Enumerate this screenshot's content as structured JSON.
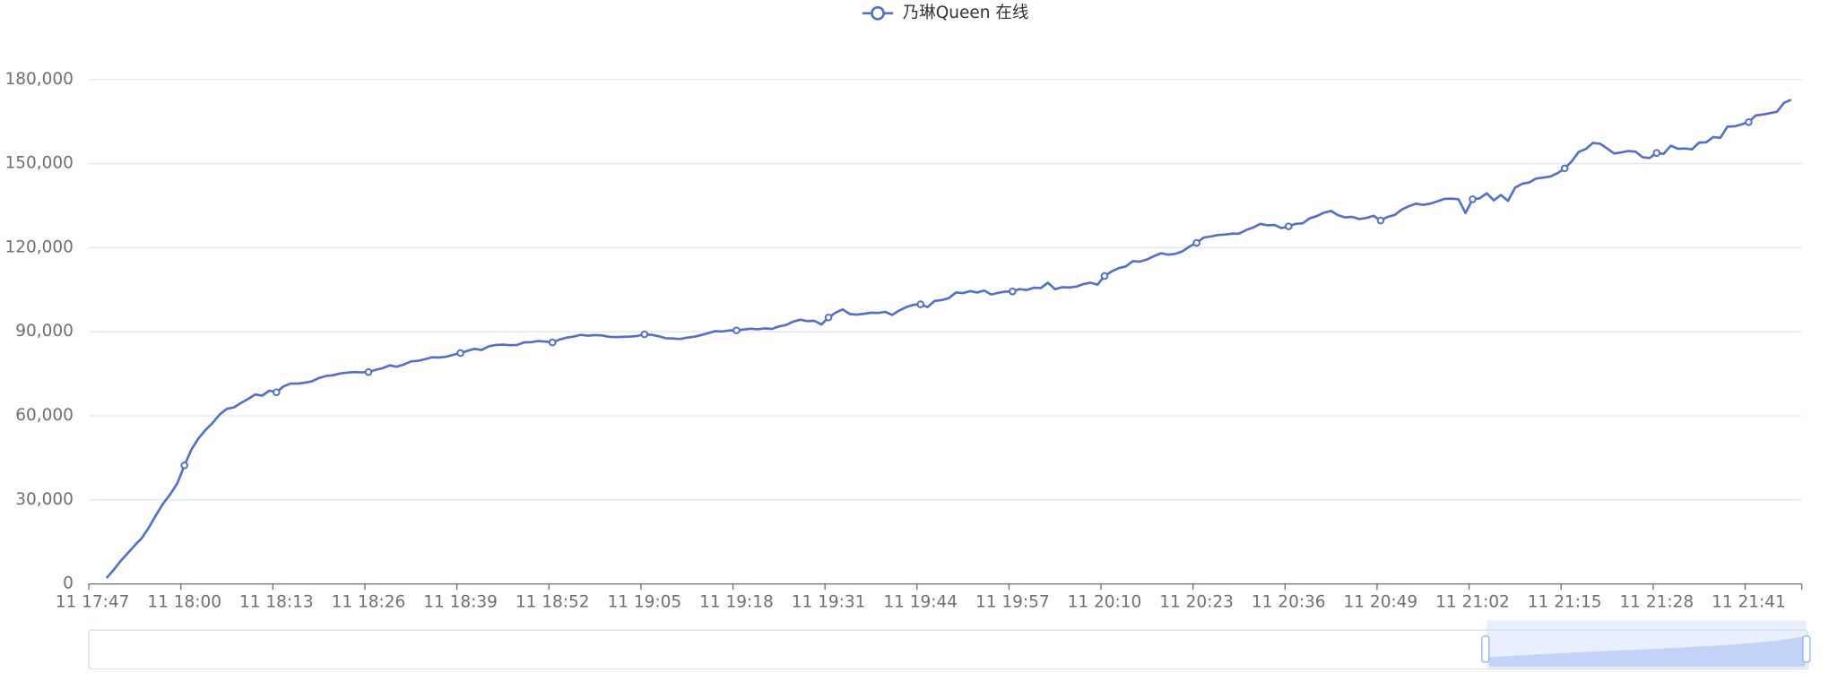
{
  "chart_data": {
    "type": "line",
    "categories": [
      "11 17:47",
      null,
      null,
      null,
      null,
      null,
      null,
      null,
      null,
      null,
      null,
      null,
      null,
      "11 18:00",
      null,
      null,
      null,
      null,
      null,
      null,
      null,
      null,
      null,
      null,
      null,
      null,
      "11 18:13",
      null,
      null,
      null,
      null,
      null,
      null,
      null,
      null,
      null,
      null,
      null,
      null,
      "11 18:26",
      null,
      null,
      null,
      null,
      null,
      null,
      null,
      null,
      null,
      null,
      null,
      null,
      "11 18:39",
      null,
      null,
      null,
      null,
      null,
      null,
      null,
      null,
      null,
      null,
      null,
      null,
      "11 18:52",
      null,
      null,
      null,
      null,
      null,
      null,
      null,
      null,
      null,
      null,
      null,
      null,
      "11 19:05",
      null,
      null,
      null,
      null,
      null,
      null,
      null,
      null,
      null,
      null,
      null,
      null,
      "11 19:18",
      null,
      null,
      null,
      null,
      null,
      null,
      null,
      null,
      null,
      null,
      null,
      null,
      "11 19:31",
      null,
      null,
      null,
      null,
      null,
      null,
      null,
      null,
      null,
      null,
      null,
      null,
      "11 19:44",
      null,
      null,
      null,
      null,
      null,
      null,
      null,
      null,
      null,
      null,
      null,
      null,
      "11 19:57",
      null,
      null,
      null,
      null,
      null,
      null,
      null,
      null,
      null,
      null,
      null,
      null,
      "11 20:10",
      null,
      null,
      null,
      null,
      null,
      null,
      null,
      null,
      null,
      null,
      null,
      null,
      "11 20:23",
      null,
      null,
      null,
      null,
      null,
      null,
      null,
      null,
      null,
      null,
      null,
      null,
      "11 20:36",
      null,
      null,
      null,
      null,
      null,
      null,
      null,
      null,
      null,
      null,
      null,
      null,
      "11 20:49",
      null,
      null,
      null,
      null,
      null,
      null,
      null,
      null,
      null,
      null,
      null,
      null,
      "11 21:02",
      null,
      null,
      null,
      null,
      null,
      null,
      null,
      null,
      null,
      null,
      null,
      null,
      "11 21:15",
      null,
      null,
      null,
      null,
      null,
      null,
      null,
      null,
      null,
      null,
      null,
      null,
      "11 21:28",
      null,
      null,
      null,
      null,
      null,
      null,
      null,
      null,
      null,
      null,
      null,
      null,
      "11 21:41",
      null,
      null,
      null,
      null,
      null,
      null,
      null
    ],
    "series": [
      {
        "name": "乃琳Queen 在线",
        "color": "#5470c6",
        "values": [
          null,
          null,
          2100,
          5000,
          8200,
          11000,
          13800,
          16400,
          20200,
          24600,
          28700,
          32000,
          35900,
          42300,
          48000,
          52000,
          55000,
          57500,
          60500,
          62500,
          63000,
          64600,
          66000,
          67600,
          67200,
          69000,
          68400,
          70500,
          71500,
          71500,
          71800,
          72300,
          73500,
          74200,
          74500,
          75100,
          75400,
          75600,
          75500,
          75600,
          76400,
          77000,
          78000,
          77500,
          78300,
          79400,
          79600,
          80200,
          80900,
          80800,
          81100,
          81800,
          82400,
          83200,
          83900,
          83500,
          84800,
          85300,
          85400,
          85200,
          85300,
          86200,
          86300,
          86700,
          86500,
          86200,
          87200,
          87900,
          88300,
          88900,
          88600,
          88800,
          88700,
          88200,
          88100,
          88200,
          88300,
          88500,
          89100,
          88900,
          88400,
          87700,
          87600,
          87400,
          87900,
          88200,
          88800,
          89500,
          90200,
          90100,
          90500,
          90500,
          90800,
          91100,
          90900,
          91200,
          91000,
          91900,
          92400,
          93600,
          94300,
          93800,
          93900,
          92600,
          95100,
          96800,
          98000,
          96300,
          96100,
          96400,
          96800,
          96700,
          97100,
          96000,
          97600,
          98800,
          99600,
          99800,
          98800,
          101000,
          101300,
          102000,
          104000,
          103800,
          104500,
          104000,
          104700,
          103300,
          103900,
          104300,
          104400,
          105200,
          104900,
          105700,
          105600,
          107500,
          105200,
          105900,
          105800,
          106100,
          107000,
          107500,
          106800,
          109900,
          111500,
          112700,
          113300,
          115200,
          115000,
          115800,
          117000,
          118000,
          117500,
          117800,
          118700,
          120400,
          121700,
          123600,
          124000,
          124500,
          124700,
          125000,
          125000,
          126300,
          127200,
          128500,
          128000,
          128100,
          127000,
          127600,
          128500,
          128700,
          130500,
          131300,
          132500,
          133100,
          131600,
          130800,
          131000,
          130200,
          130600,
          131400,
          129700,
          131000,
          131700,
          133600,
          134800,
          135700,
          135300,
          135700,
          136500,
          137400,
          137500,
          137300,
          132400,
          137300,
          137600,
          139400,
          136900,
          138800,
          136700,
          141400,
          142800,
          143300,
          144700,
          145000,
          145400,
          146600,
          148300,
          150800,
          154200,
          155200,
          157400,
          157100,
          155400,
          153600,
          154000,
          154500,
          154300,
          152300,
          152000,
          153800,
          153500,
          156400,
          155300,
          155400,
          155100,
          157500,
          157600,
          159500,
          159200,
          163200,
          163300,
          164000,
          164800,
          167200,
          167500,
          168000,
          168500,
          171700,
          172800,
          null
        ]
      }
    ],
    "ylim": [
      0,
      180000
    ],
    "yticks": [
      0,
      {
        "value": 30000,
        "label": "30,000"
      },
      {
        "value": 60000,
        "label": "60,000"
      },
      {
        "value": 90000,
        "label": "90,000"
      },
      {
        "value": 120000,
        "label": "120,000"
      },
      {
        "value": 150000,
        "label": "150,000"
      },
      {
        "value": 180000,
        "label": "180,000"
      }
    ],
    "grid": true,
    "legend": "top"
  }
}
